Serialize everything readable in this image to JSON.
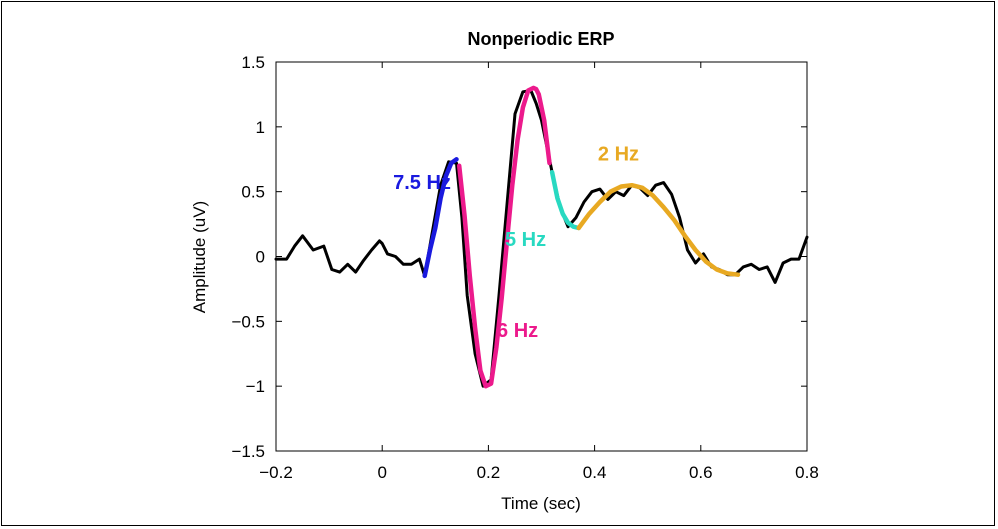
{
  "chart_data": {
    "type": "line",
    "title": "Nonperiodic ERP",
    "xlabel": "Time (sec)",
    "ylabel": "Amplitude (uV)",
    "xlim": [
      -0.2,
      0.8
    ],
    "ylim": [
      -1.5,
      1.5
    ],
    "x_ticks": [
      -0.2,
      0,
      0.2,
      0.4,
      0.6,
      0.8
    ],
    "x_tick_labels": [
      "−0.2",
      "0",
      "0.2",
      "0.4",
      "0.6",
      "0.8"
    ],
    "y_ticks": [
      1.5,
      1,
      0.5,
      0,
      -0.5,
      -1,
      -1.5
    ],
    "y_tick_labels": [
      "1.5",
      "1",
      "0.5",
      "0",
      "−0.5",
      "−1",
      "−1.5"
    ],
    "grid": false,
    "series": [
      {
        "color": "#000000",
        "x": [
          -0.2,
          -0.18,
          -0.165,
          -0.15,
          -0.13,
          -0.11,
          -0.095,
          -0.08,
          -0.065,
          -0.05,
          -0.035,
          -0.02,
          -0.005,
          0.0,
          0.01,
          0.025,
          0.04,
          0.055,
          0.07,
          0.08,
          0.095,
          0.11,
          0.125,
          0.14,
          0.15,
          0.16,
          0.175,
          0.19,
          0.205,
          0.22,
          0.235,
          0.25,
          0.265,
          0.28,
          0.29,
          0.3,
          0.31,
          0.32,
          0.335,
          0.35,
          0.365,
          0.38,
          0.395,
          0.41,
          0.425,
          0.44,
          0.455,
          0.47,
          0.485,
          0.5,
          0.515,
          0.53,
          0.545,
          0.56,
          0.575,
          0.59,
          0.605,
          0.62,
          0.635,
          0.65,
          0.665,
          0.68,
          0.695,
          0.71,
          0.725,
          0.74,
          0.755,
          0.77,
          0.785,
          0.8
        ],
        "y": [
          -0.02,
          -0.02,
          0.08,
          0.16,
          0.05,
          0.08,
          -0.1,
          -0.12,
          -0.06,
          -0.12,
          -0.03,
          0.05,
          0.12,
          0.1,
          0.02,
          0.0,
          -0.06,
          -0.06,
          -0.02,
          -0.15,
          0.2,
          0.55,
          0.73,
          0.72,
          0.3,
          -0.3,
          -0.75,
          -1.0,
          -0.95,
          -0.3,
          0.4,
          1.1,
          1.27,
          1.28,
          1.18,
          1.05,
          0.85,
          0.65,
          0.38,
          0.23,
          0.3,
          0.42,
          0.5,
          0.52,
          0.44,
          0.5,
          0.47,
          0.55,
          0.53,
          0.47,
          0.55,
          0.57,
          0.48,
          0.3,
          0.05,
          -0.05,
          0.02,
          -0.08,
          -0.1,
          -0.14,
          -0.14,
          -0.08,
          -0.06,
          -0.1,
          -0.08,
          -0.2,
          -0.05,
          -0.02,
          -0.02,
          0.15
        ]
      },
      {
        "color": "#1a1adf",
        "x": [
          0.08,
          0.09,
          0.1,
          0.11,
          0.12,
          0.13,
          0.14
        ],
        "y": [
          -0.15,
          0.05,
          0.22,
          0.45,
          0.62,
          0.72,
          0.75
        ]
      },
      {
        "color": "#ec1a8c",
        "x": [
          0.145,
          0.155,
          0.165,
          0.175,
          0.185,
          0.195,
          0.205,
          0.215,
          0.225,
          0.235,
          0.245,
          0.255,
          0.265,
          0.275,
          0.285,
          0.29,
          0.295,
          0.305,
          0.315
        ],
        "y": [
          0.7,
          0.32,
          -0.15,
          -0.55,
          -0.88,
          -1.0,
          -0.98,
          -0.7,
          -0.32,
          0.12,
          0.55,
          0.9,
          1.15,
          1.28,
          1.3,
          1.29,
          1.25,
          1.05,
          0.72
        ]
      },
      {
        "color": "#28d9c1",
        "x": [
          0.32,
          0.33,
          0.34,
          0.35,
          0.36,
          0.37
        ],
        "y": [
          0.65,
          0.45,
          0.33,
          0.26,
          0.23,
          0.22
        ]
      },
      {
        "color": "#e8a922",
        "x": [
          0.37,
          0.39,
          0.41,
          0.43,
          0.45,
          0.47,
          0.49,
          0.51,
          0.53,
          0.55,
          0.57,
          0.59,
          0.61,
          0.63,
          0.65,
          0.67
        ],
        "y": [
          0.22,
          0.33,
          0.42,
          0.5,
          0.54,
          0.55,
          0.53,
          0.47,
          0.38,
          0.28,
          0.16,
          0.05,
          -0.04,
          -0.1,
          -0.13,
          -0.14
        ]
      }
    ],
    "annotations": [
      {
        "text": "7.5 Hz",
        "color": "#1a1adf",
        "x": 0.075,
        "y": 0.52
      },
      {
        "text": "6 Hz",
        "color": "#ec1a8c",
        "x": 0.255,
        "y": -0.62
      },
      {
        "text": "5 Hz",
        "color": "#28d9c1",
        "x": 0.27,
        "y": 0.08
      },
      {
        "text": "2 Hz",
        "color": "#e8a922",
        "x": 0.445,
        "y": 0.74
      }
    ]
  }
}
